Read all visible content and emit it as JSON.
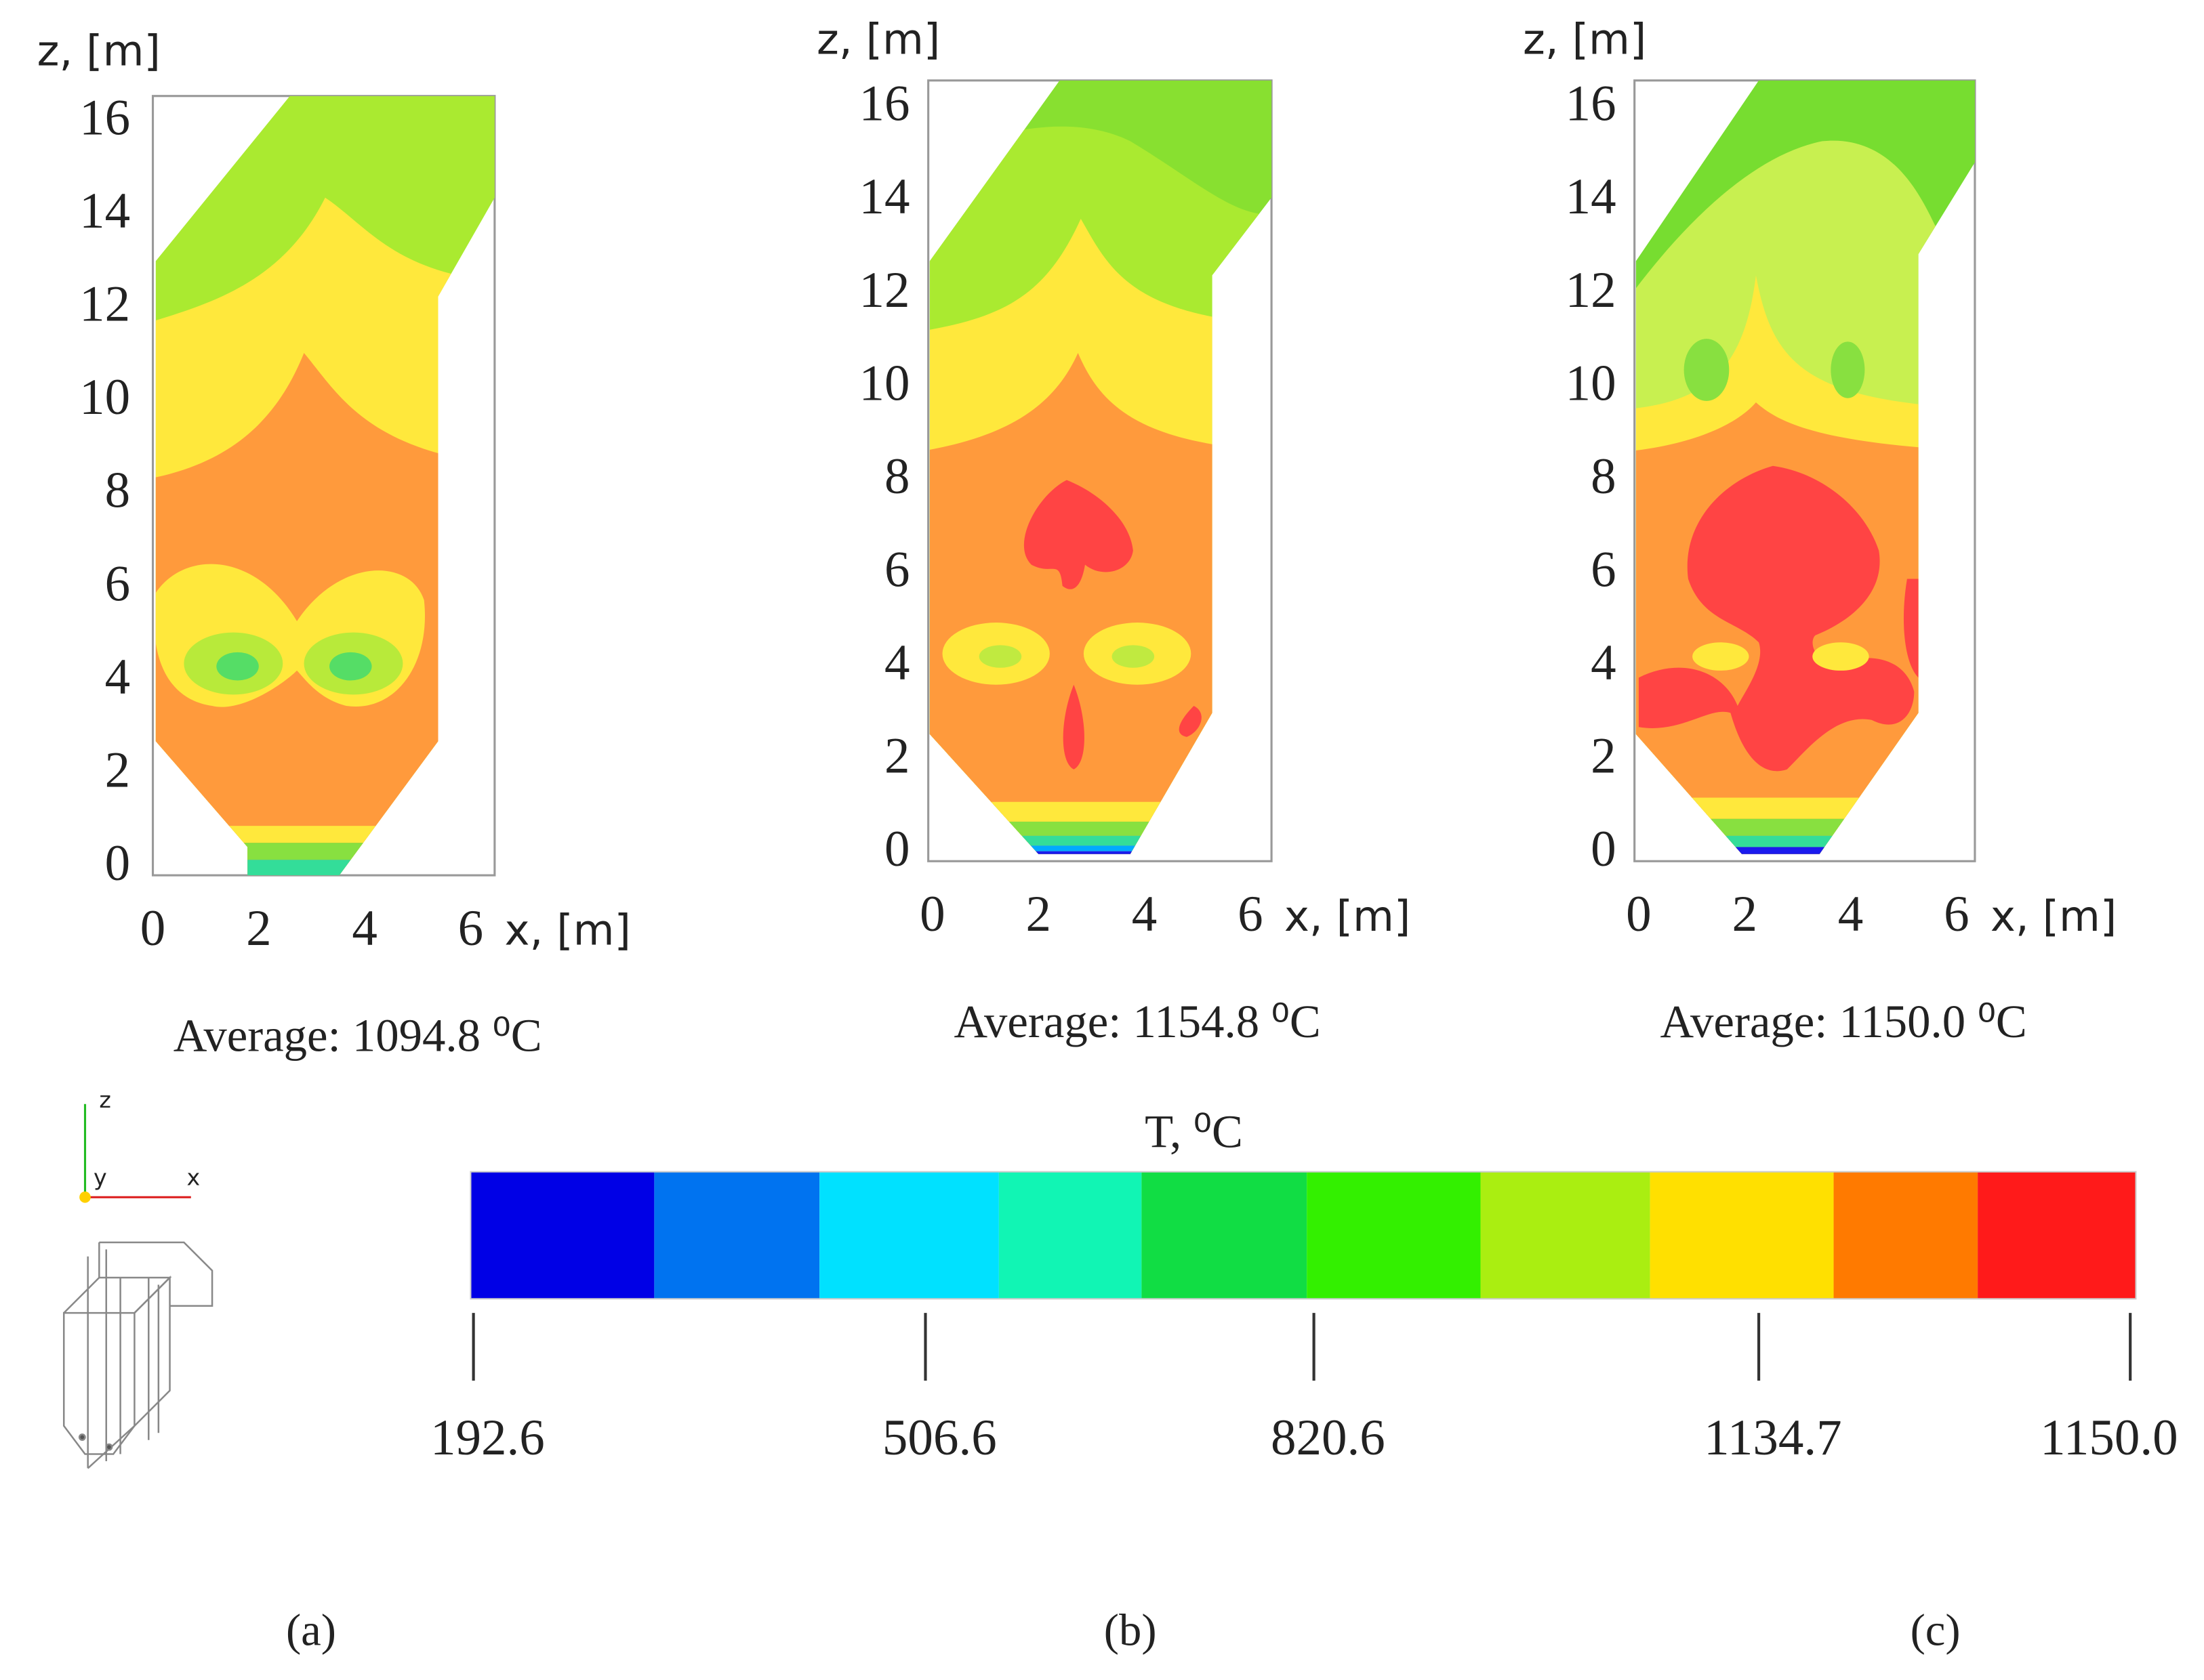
{
  "panels": [
    {
      "ylabel": "z, [m]",
      "xlabel": "x, [m]",
      "yticks": [
        0,
        2,
        4,
        6,
        8,
        10,
        12,
        14,
        16
      ],
      "xticks": [
        0,
        2,
        4,
        6
      ],
      "average": "Average: 1094.8 ⁰C",
      "caption": "(a)"
    },
    {
      "ylabel": "z, [m]",
      "xlabel": "x, [m]",
      "yticks": [
        0,
        2,
        4,
        6,
        8,
        10,
        12,
        14,
        16
      ],
      "xticks": [
        0,
        2,
        4,
        6
      ],
      "average": "Average: 1154.8 ⁰C",
      "caption": "(b)"
    },
    {
      "ylabel": "z, [m]",
      "xlabel": "x, [m]",
      "yticks": [
        0,
        2,
        4,
        6,
        8,
        10,
        12,
        14,
        16
      ],
      "xticks": [
        0,
        2,
        4,
        6
      ],
      "average": "Average: 1150.0 ⁰C",
      "caption": "(c)"
    }
  ],
  "colorbar": {
    "title": "T, ⁰C",
    "colors": [
      "#0000e6",
      "#0073f0",
      "#00e1ff",
      "#11f5b4",
      "#11dd44",
      "#33f000",
      "#aaee11",
      "#ffe000",
      "#ff7a00",
      "#ff1a1a"
    ],
    "tick_labels": [
      "192.6",
      "506.6",
      "820.6",
      "1134.7",
      "1150.0"
    ]
  },
  "axes_icon": {
    "labels": [
      "z",
      "y",
      "x"
    ]
  }
}
